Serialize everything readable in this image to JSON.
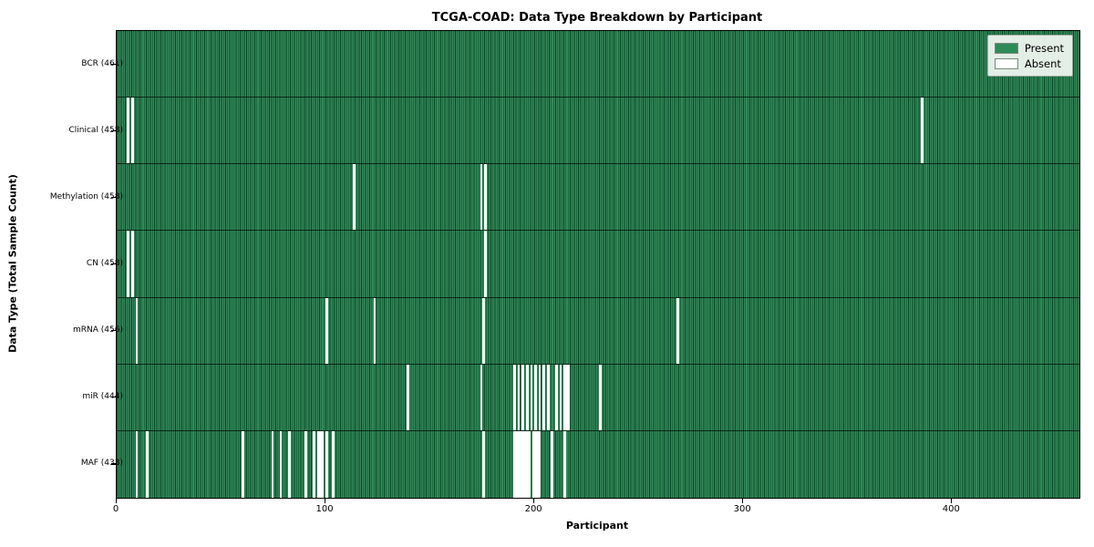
{
  "chart_data": {
    "type": "heatmap",
    "title": "TCGA-COAD: Data Type Breakdown by Participant",
    "xlabel": "Participant",
    "ylabel": "Data Type (Total Sample Count)",
    "x_ticks": [
      0,
      100,
      200,
      300,
      400
    ],
    "x_max": 461,
    "grid": false,
    "legend_position": "upper right",
    "legend_labels": [
      "Present",
      "Absent"
    ],
    "colors": {
      "present": "#2e8b57",
      "absent": "#ffffff",
      "bar_edge": "#12402a"
    },
    "rows": [
      {
        "label": "BCR (461)",
        "name": "BCR",
        "present_count": 461,
        "absent_participants": []
      },
      {
        "label": "Clinical (458)",
        "name": "Clinical",
        "present_count": 458,
        "absent_participants": [
          5,
          7,
          385
        ]
      },
      {
        "label": "Methylation (458)",
        "name": "Methylation",
        "present_count": 458,
        "absent_participants": [
          113,
          174,
          176
        ]
      },
      {
        "label": "CN (458)",
        "name": "CN",
        "present_count": 458,
        "absent_participants": [
          5,
          7,
          176
        ]
      },
      {
        "label": "mRNA (456)",
        "name": "mRNA",
        "present_count": 456,
        "absent_participants": [
          9,
          100,
          123,
          175,
          268
        ]
      },
      {
        "label": "miR (444)",
        "name": "miR",
        "present_count": 444,
        "absent_participants": [
          139,
          174,
          190,
          192,
          194,
          196,
          198,
          200,
          202,
          204,
          206,
          210,
          212,
          214,
          215,
          216,
          231
        ]
      },
      {
        "label": "MAF (433)",
        "name": "MAF",
        "present_count": 433,
        "absent_participants": [
          9,
          14,
          60,
          74,
          78,
          82,
          90,
          94,
          96,
          97,
          98,
          100,
          103,
          175,
          190,
          191,
          192,
          193,
          194,
          195,
          196,
          197,
          199,
          200,
          201,
          202,
          208,
          214
        ]
      }
    ]
  }
}
